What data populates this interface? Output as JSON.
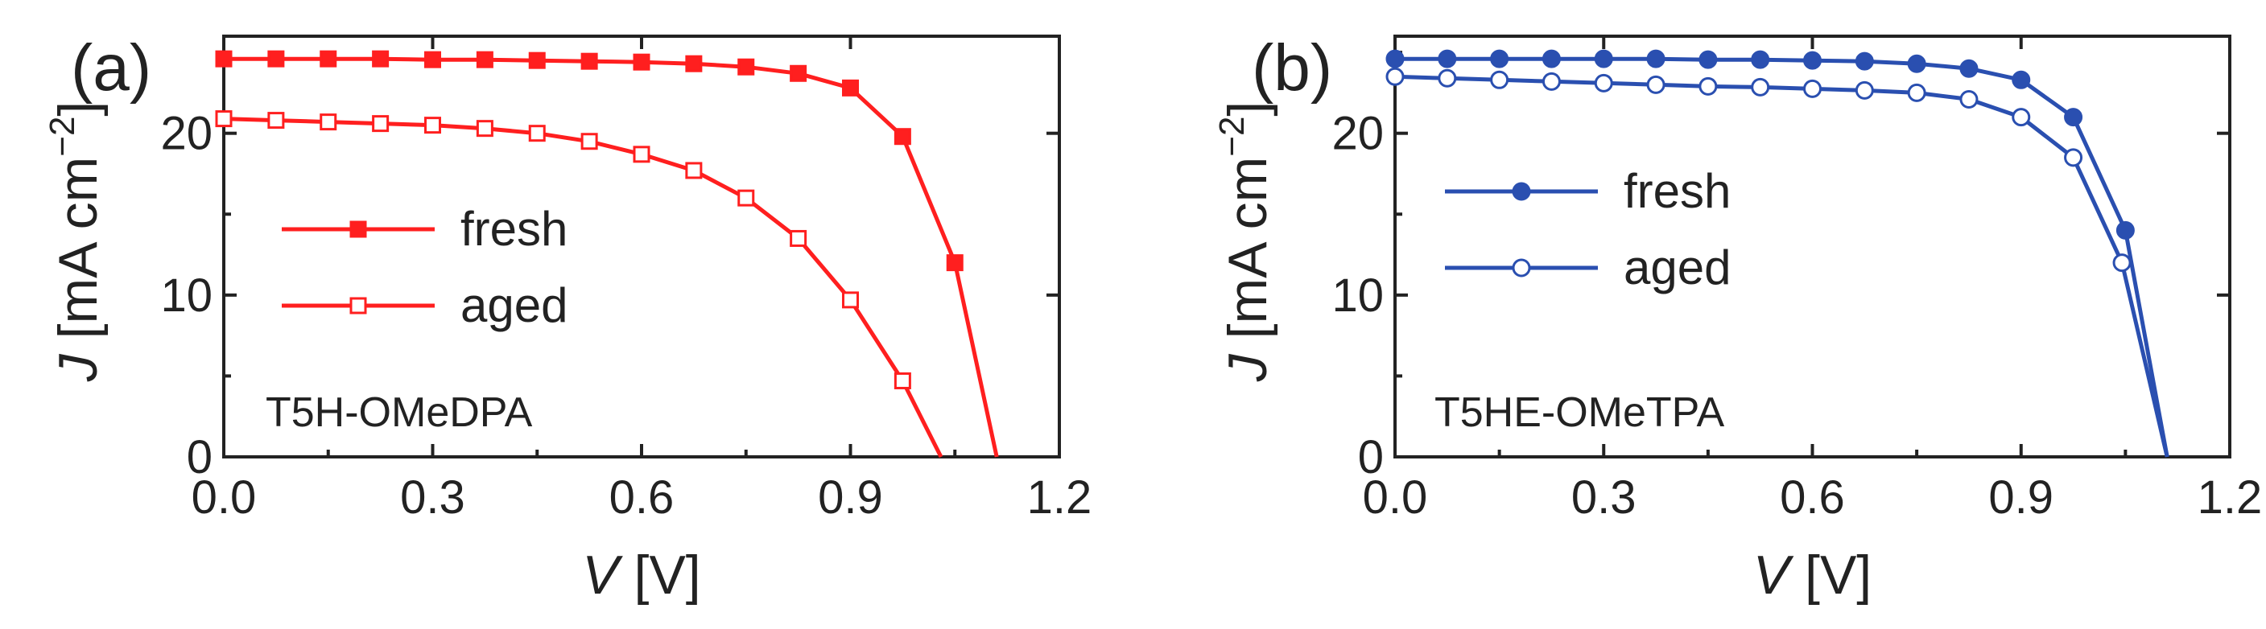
{
  "chart_data": [
    {
      "panel": "(a)",
      "type": "line",
      "sample_label": "T5H-OMeDPA",
      "color": "#ff1f1f",
      "xlabel_italic": "V",
      "xlabel_unit": " [V]",
      "ylabel_italic": "J",
      "ylabel_unit": " [mA cm",
      "ylabel_exp": "−2",
      "ylabel_close": "]",
      "xlim": [
        0,
        1.2
      ],
      "ylim": [
        0,
        26
      ],
      "xticks": [
        0.0,
        0.3,
        0.6,
        0.9,
        1.2
      ],
      "xtick_labels": [
        "0.0",
        "0.3",
        "0.6",
        "0.9",
        "1.2"
      ],
      "yticks": [
        0,
        10,
        20
      ],
      "ytick_labels": [
        "0",
        "10",
        "20"
      ],
      "legend_position": "center-left",
      "series": [
        {
          "name": "fresh",
          "marker": "filled-square",
          "x": [
            0.0,
            0.075,
            0.15,
            0.225,
            0.3,
            0.375,
            0.45,
            0.525,
            0.6,
            0.675,
            0.75,
            0.825,
            0.9,
            0.975,
            1.05,
            1.11
          ],
          "y": [
            24.6,
            24.6,
            24.6,
            24.6,
            24.55,
            24.55,
            24.5,
            24.45,
            24.4,
            24.3,
            24.1,
            23.7,
            22.8,
            19.8,
            12.0,
            0.0
          ]
        },
        {
          "name": "aged",
          "marker": "open-square",
          "x": [
            0.0,
            0.075,
            0.15,
            0.225,
            0.3,
            0.375,
            0.45,
            0.525,
            0.6,
            0.675,
            0.75,
            0.825,
            0.9,
            0.975,
            1.03
          ],
          "y": [
            20.9,
            20.8,
            20.7,
            20.6,
            20.5,
            20.3,
            20.0,
            19.5,
            18.7,
            17.7,
            16.0,
            13.5,
            9.7,
            4.7,
            0.0
          ]
        }
      ]
    },
    {
      "panel": "(b)",
      "type": "line",
      "sample_label": "T5HE-OMeTPA",
      "color": "#2a4fb0",
      "xlabel_italic": "V",
      "xlabel_unit": " [V]",
      "ylabel_italic": "J",
      "ylabel_unit": " [mA cm",
      "ylabel_exp": "−2",
      "ylabel_close": "]",
      "xlim": [
        0,
        1.2
      ],
      "ylim": [
        0,
        26
      ],
      "xticks": [
        0.0,
        0.3,
        0.6,
        0.9,
        1.2
      ],
      "xtick_labels": [
        "0.0",
        "0.3",
        "0.6",
        "0.9",
        "1.2"
      ],
      "yticks": [
        0,
        10,
        20
      ],
      "ytick_labels": [
        "0",
        "10",
        "20"
      ],
      "legend_position": "upper-left",
      "series": [
        {
          "name": "fresh",
          "marker": "filled-circle",
          "x": [
            0.0,
            0.075,
            0.15,
            0.225,
            0.3,
            0.375,
            0.45,
            0.525,
            0.6,
            0.675,
            0.75,
            0.825,
            0.9,
            0.975,
            1.05,
            1.11
          ],
          "y": [
            24.6,
            24.6,
            24.6,
            24.6,
            24.6,
            24.6,
            24.55,
            24.55,
            24.5,
            24.45,
            24.3,
            24.0,
            23.3,
            21.0,
            14.0,
            0.0
          ]
        },
        {
          "name": "aged",
          "marker": "open-circle",
          "x": [
            0.0,
            0.075,
            0.15,
            0.225,
            0.3,
            0.375,
            0.45,
            0.525,
            0.6,
            0.675,
            0.75,
            0.825,
            0.9,
            0.975,
            1.045,
            1.11
          ],
          "y": [
            23.5,
            23.4,
            23.3,
            23.2,
            23.1,
            23.0,
            22.9,
            22.85,
            22.75,
            22.65,
            22.5,
            22.1,
            21.0,
            18.5,
            12.0,
            0.0
          ]
        }
      ]
    }
  ]
}
